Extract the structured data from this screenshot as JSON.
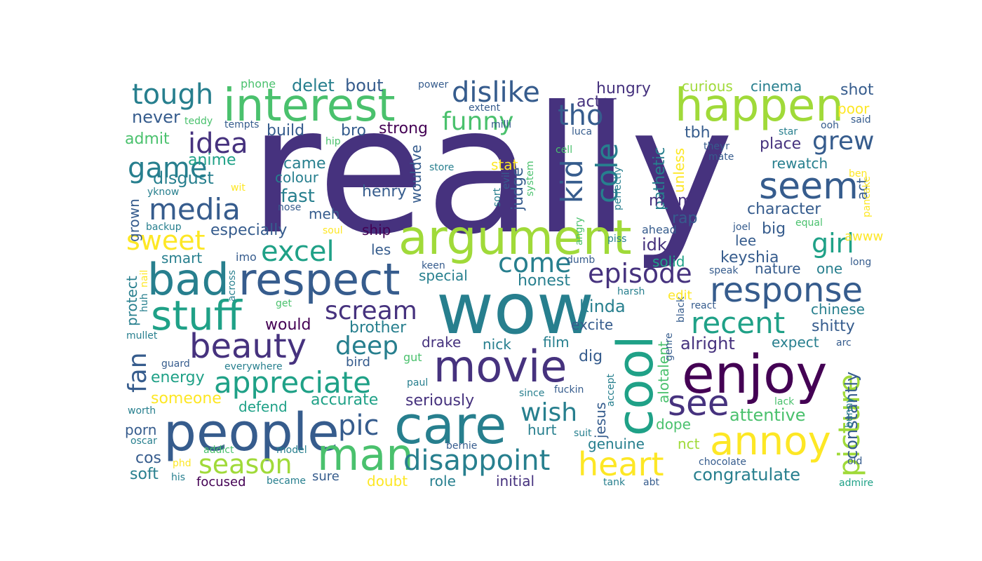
{
  "colors": {
    "background": "#ffffff",
    "palette": "viridis",
    "dark_purple": "#46327e",
    "deep_purple": "#440154",
    "blue": "#365c8d",
    "teal": "#277f8e",
    "green_teal": "#1fa187",
    "green": "#4ac16d",
    "lime": "#a0da39",
    "yellow": "#fde725"
  },
  "words": [
    "really",
    "wow",
    "argument",
    "interest",
    "happen",
    "enjoy",
    "cool",
    "people",
    "care",
    "movie",
    "respect",
    "bad",
    "man",
    "stuff",
    "beauty",
    "annoy",
    "seem",
    "response",
    "dislike",
    "tough",
    "media",
    "idea",
    "tho",
    "kid",
    "cole",
    "heart",
    "see",
    "game",
    "disappoint",
    "episode",
    "appreciate",
    "excel",
    "picture",
    "recent",
    "funny",
    "season",
    "sweet",
    "scream",
    "grew",
    "girl",
    "come",
    "deep",
    "wish",
    "pic",
    "fan",
    "never",
    "admit",
    "disgust",
    "anime",
    "build",
    "delet",
    "bout",
    "phone",
    "teddy",
    "tempts",
    "hungry",
    "actor",
    "curious",
    "cinema",
    "shot",
    "poor",
    "said",
    "ooh",
    "extent",
    "milli",
    "power",
    "strong",
    "bro",
    "tbh",
    "place",
    "rewatch",
    "act",
    "stat",
    "judge",
    "unless",
    "pathetic",
    "character",
    "awww",
    "luca",
    "star",
    "theyr",
    "mate",
    "ben",
    "pancake",
    "hip",
    "cell",
    "store",
    "perfectly",
    "came",
    "colour",
    "fast",
    "henry",
    "wouldve",
    "miami",
    "rap",
    "meh",
    "especially",
    "ship",
    "les",
    "big",
    "lee",
    "keyshia",
    "idk",
    "solid",
    "nature",
    "one",
    "special",
    "honest",
    "kinda",
    "excite",
    "would",
    "brother",
    "shitty",
    "chinese",
    "drake",
    "nick",
    "film",
    "dig",
    "alright",
    "expect",
    "constantly",
    "attentive",
    "congratulate",
    "energy",
    "someone",
    "defend",
    "accurate",
    "seriously",
    "jesus",
    "alotalent",
    "dope",
    "nct",
    "genuine",
    "hurt",
    "porn",
    "cos",
    "soft",
    "focused",
    "doubt",
    "role",
    "initial",
    "sure",
    "tank",
    "abt",
    "chocolate",
    "old",
    "admire",
    "grown",
    "protect",
    "smart",
    "imo",
    "across",
    "dumb",
    "keen",
    "ahead",
    "piss",
    "joel",
    "equal",
    "soul",
    "backup",
    "nose",
    "wit",
    "yknow",
    "sort",
    "evil",
    "system",
    "angry",
    "speak",
    "long",
    "harsh",
    "react",
    "black",
    "genre",
    "edit",
    "mullet",
    "huh",
    "nail",
    "get",
    "gut",
    "bird",
    "guard",
    "everywhere",
    "paul",
    "since",
    "fuckin",
    "accept",
    "suit",
    "bernie",
    "model",
    "addict",
    "oscar",
    "worth",
    "phd",
    "his",
    "became",
    "lack",
    "bunny",
    "arc",
    "unless",
    "system"
  ]
}
